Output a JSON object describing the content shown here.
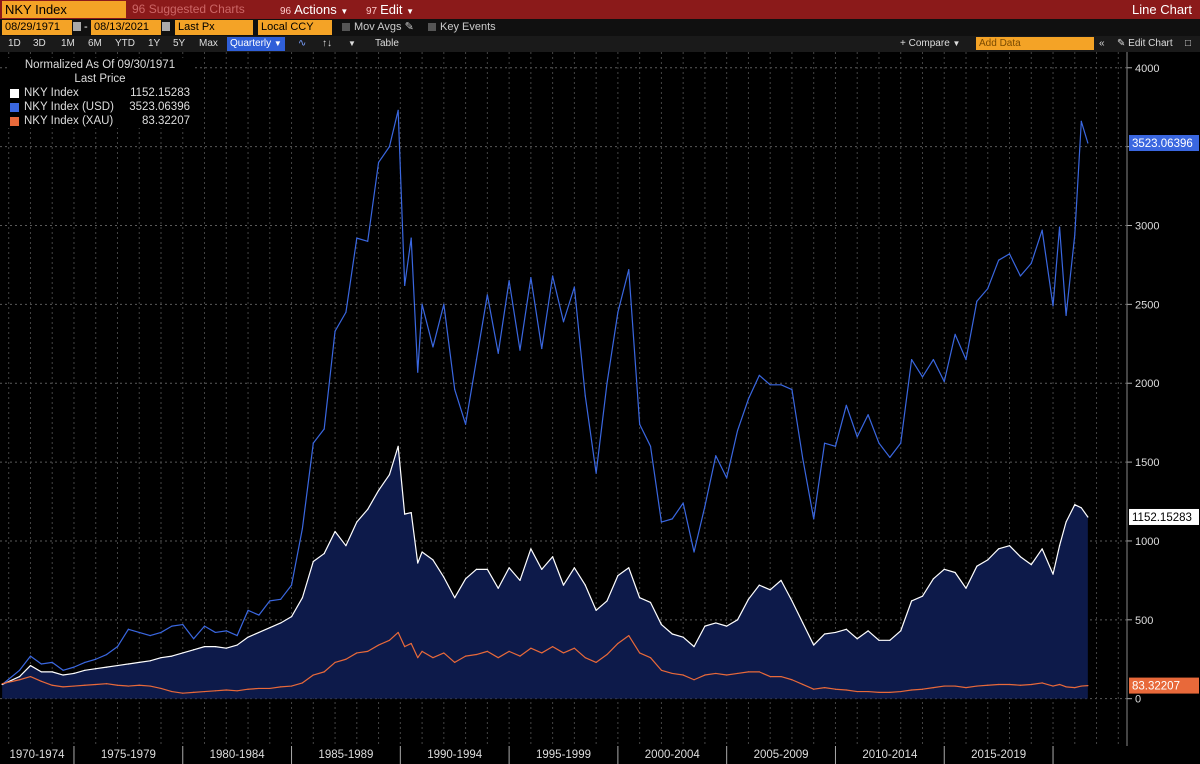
{
  "toolbar": {
    "ticker": "NKY Index",
    "suggested_label": "Suggested Charts",
    "suggested_num": "96",
    "actions_num": "96",
    "actions_label": "Actions",
    "edit_num": "97",
    "edit_label": "Edit",
    "chart_type": "Line Chart",
    "start_date": "08/29/1971",
    "end_date": "08/13/2021",
    "price_field": "Last Px",
    "currency": "Local CCY",
    "mov_avgs": "Mov Avgs",
    "key_events": "Key Events",
    "periods": [
      "1D",
      "3D",
      "1M",
      "6M",
      "YTD",
      "1Y",
      "5Y",
      "Max"
    ],
    "frequency": "Quarterly",
    "table_label": "Table",
    "compare_label": "Compare",
    "add_data_placeholder": "Add Data",
    "edit_chart_label": "Edit Chart"
  },
  "legend": {
    "normalized": "Normalized As Of 09/30/1971",
    "last_price": "Last Price",
    "items": [
      {
        "name": "NKY Index",
        "value": "1152.15283",
        "color": "#ffffff"
      },
      {
        "name": "NKY Index (USD)",
        "value": "3523.06396",
        "color": "#3a67e0"
      },
      {
        "name": "NKY Index (XAU)",
        "value": "83.32207",
        "color": "#e8693a"
      }
    ]
  },
  "chart_data": {
    "type": "line",
    "ylim": [
      -300,
      4100
    ],
    "yticks": [
      0,
      500,
      1000,
      1500,
      2000,
      2500,
      3000,
      3500,
      4000
    ],
    "xlim": [
      1971.6,
      2023.4
    ],
    "x_groups": [
      {
        "label": "1970-1974",
        "start": 1971.6,
        "end": 1975
      },
      {
        "label": "1975-1979",
        "start": 1975,
        "end": 1980
      },
      {
        "label": "1980-1984",
        "start": 1980,
        "end": 1985
      },
      {
        "label": "1985-1989",
        "start": 1985,
        "end": 1990
      },
      {
        "label": "1990-1994",
        "start": 1990,
        "end": 1995
      },
      {
        "label": "1995-1999",
        "start": 1995,
        "end": 2000
      },
      {
        "label": "2000-2004",
        "start": 2000,
        "end": 2005
      },
      {
        "label": "2005-2009",
        "start": 2005,
        "end": 2010
      },
      {
        "label": "2010-2014",
        "start": 2010,
        "end": 2015
      },
      {
        "label": "2015-2019",
        "start": 2015,
        "end": 2020
      },
      {
        "label": "",
        "start": 2020,
        "end": 2023.4
      }
    ],
    "series": [
      {
        "name": "NKY Index (USD)",
        "color": "#3a67e0",
        "last_label": "3523.06396",
        "x": [
          1971.7,
          1972.5,
          1973.0,
          1973.5,
          1974.0,
          1974.5,
          1975.0,
          1975.5,
          1976.0,
          1976.5,
          1977.0,
          1977.5,
          1978.0,
          1978.5,
          1979.0,
          1979.5,
          1980.0,
          1980.5,
          1981.0,
          1981.5,
          1982.0,
          1982.5,
          1983.0,
          1983.5,
          1984.0,
          1984.5,
          1985.0,
          1985.5,
          1986.0,
          1986.5,
          1987.0,
          1987.5,
          1988.0,
          1988.5,
          1989.0,
          1989.5,
          1989.9,
          1990.2,
          1990.5,
          1990.8,
          1991.0,
          1991.5,
          1992.0,
          1992.5,
          1993.0,
          1993.5,
          1994.0,
          1994.5,
          1995.0,
          1995.5,
          1996.0,
          1996.5,
          1997.0,
          1997.5,
          1998.0,
          1998.5,
          1999.0,
          1999.5,
          2000.0,
          2000.5,
          2001.0,
          2001.5,
          2002.0,
          2002.5,
          2003.0,
          2003.5,
          2004.0,
          2004.5,
          2005.0,
          2005.5,
          2006.0,
          2006.5,
          2007.0,
          2007.5,
          2008.0,
          2008.5,
          2009.0,
          2009.5,
          2010.0,
          2010.5,
          2011.0,
          2011.5,
          2012.0,
          2012.5,
          2013.0,
          2013.5,
          2014.0,
          2014.5,
          2015.0,
          2015.5,
          2016.0,
          2016.5,
          2017.0,
          2017.5,
          2018.0,
          2018.5,
          2019.0,
          2019.5,
          2020.0,
          2020.3,
          2020.6,
          2021.0,
          2021.3,
          2021.6
        ],
        "values": [
          90,
          180,
          270,
          220,
          230,
          180,
          200,
          230,
          250,
          280,
          330,
          440,
          420,
          400,
          420,
          460,
          470,
          380,
          460,
          420,
          430,
          400,
          560,
          530,
          620,
          630,
          720,
          1080,
          1620,
          1710,
          2330,
          2450,
          2920,
          2900,
          3400,
          3500,
          3730,
          2620,
          2920,
          2070,
          2500,
          2230,
          2500,
          1960,
          1740,
          2150,
          2560,
          2190,
          2650,
          2210,
          2670,
          2220,
          2680,
          2390,
          2610,
          1920,
          1430,
          2000,
          2450,
          2720,
          1740,
          1600,
          1120,
          1140,
          1240,
          930,
          1220,
          1540,
          1400,
          1700,
          1900,
          2050,
          1990,
          1990,
          1960,
          1520,
          1140,
          1620,
          1600,
          1860,
          1660,
          1800,
          1620,
          1530,
          1620,
          2150,
          2040,
          2150,
          2010,
          2310,
          2150,
          2520,
          2600,
          2780,
          2820,
          2680,
          2760,
          2970,
          2490,
          2990,
          2430,
          2940,
          3660,
          3523
        ]
      },
      {
        "name": "NKY Index",
        "color": "#ffffff",
        "last_label": "1152.15283",
        "x": [
          1971.7,
          1972.5,
          1973.0,
          1973.5,
          1974.0,
          1974.5,
          1975.0,
          1975.5,
          1976.0,
          1976.5,
          1977.0,
          1977.5,
          1978.0,
          1978.5,
          1979.0,
          1979.5,
          1980.0,
          1980.5,
          1981.0,
          1981.5,
          1982.0,
          1982.5,
          1983.0,
          1983.5,
          1984.0,
          1984.5,
          1985.0,
          1985.5,
          1986.0,
          1986.5,
          1987.0,
          1987.5,
          1988.0,
          1988.5,
          1989.0,
          1989.5,
          1989.9,
          1990.2,
          1990.5,
          1990.8,
          1991.0,
          1991.5,
          1992.0,
          1992.5,
          1993.0,
          1993.5,
          1994.0,
          1994.5,
          1995.0,
          1995.5,
          1996.0,
          1996.5,
          1997.0,
          1997.5,
          1998.0,
          1998.5,
          1999.0,
          1999.5,
          2000.0,
          2000.5,
          2001.0,
          2001.5,
          2002.0,
          2002.5,
          2003.0,
          2003.5,
          2004.0,
          2004.5,
          2005.0,
          2005.5,
          2006.0,
          2006.5,
          2007.0,
          2007.5,
          2008.0,
          2008.5,
          2009.0,
          2009.5,
          2010.0,
          2010.5,
          2011.0,
          2011.5,
          2012.0,
          2012.5,
          2013.0,
          2013.5,
          2014.0,
          2014.5,
          2015.0,
          2015.5,
          2016.0,
          2016.5,
          2017.0,
          2017.5,
          2018.0,
          2018.5,
          2019.0,
          2019.5,
          2020.0,
          2020.3,
          2020.6,
          2021.0,
          2021.3,
          2021.6
        ],
        "values": [
          90,
          140,
          210,
          170,
          170,
          150,
          160,
          180,
          190,
          200,
          210,
          220,
          230,
          240,
          260,
          270,
          290,
          310,
          330,
          330,
          320,
          340,
          390,
          420,
          450,
          480,
          520,
          640,
          870,
          920,
          1060,
          970,
          1120,
          1200,
          1320,
          1420,
          1600,
          1170,
          1180,
          860,
          930,
          880,
          770,
          640,
          760,
          820,
          820,
          700,
          830,
          750,
          950,
          820,
          900,
          720,
          830,
          720,
          560,
          620,
          780,
          830,
          640,
          610,
          470,
          410,
          390,
          330,
          460,
          480,
          460,
          500,
          630,
          720,
          690,
          750,
          620,
          480,
          340,
          410,
          420,
          440,
          380,
          430,
          370,
          370,
          430,
          620,
          650,
          760,
          820,
          800,
          700,
          840,
          880,
          950,
          970,
          900,
          850,
          950,
          790,
          970,
          1120,
          1230,
          1210,
          1152
        ]
      },
      {
        "name": "NKY Index (XAU)",
        "color": "#e8693a",
        "last_label": "83.32207",
        "x": [
          1971.7,
          1972.5,
          1973.0,
          1973.5,
          1974.0,
          1974.5,
          1975.0,
          1975.5,
          1976.0,
          1976.5,
          1977.0,
          1977.5,
          1978.0,
          1978.5,
          1979.0,
          1979.5,
          1980.0,
          1980.5,
          1981.0,
          1981.5,
          1982.0,
          1982.5,
          1983.0,
          1983.5,
          1984.0,
          1984.5,
          1985.0,
          1985.5,
          1986.0,
          1986.5,
          1987.0,
          1987.5,
          1988.0,
          1988.5,
          1989.0,
          1989.5,
          1989.9,
          1990.2,
          1990.5,
          1990.8,
          1991.0,
          1991.5,
          1992.0,
          1992.5,
          1993.0,
          1993.5,
          1994.0,
          1994.5,
          1995.0,
          1995.5,
          1996.0,
          1996.5,
          1997.0,
          1997.5,
          1998.0,
          1998.5,
          1999.0,
          1999.5,
          2000.0,
          2000.5,
          2001.0,
          2001.5,
          2002.0,
          2002.5,
          2003.0,
          2003.5,
          2004.0,
          2004.5,
          2005.0,
          2005.5,
          2006.0,
          2006.5,
          2007.0,
          2007.5,
          2008.0,
          2008.5,
          2009.0,
          2009.5,
          2010.0,
          2010.5,
          2011.0,
          2011.5,
          2012.0,
          2012.5,
          2013.0,
          2013.5,
          2014.0,
          2014.5,
          2015.0,
          2015.5,
          2016.0,
          2016.5,
          2017.0,
          2017.5,
          2018.0,
          2018.5,
          2019.0,
          2019.5,
          2020.0,
          2020.3,
          2020.6,
          2021.0,
          2021.3,
          2021.6
        ],
        "values": [
          95,
          120,
          140,
          110,
          85,
          75,
          80,
          85,
          90,
          95,
          85,
          80,
          85,
          80,
          65,
          45,
          35,
          40,
          45,
          50,
          55,
          50,
          60,
          65,
          65,
          75,
          80,
          100,
          150,
          170,
          230,
          250,
          290,
          300,
          340,
          370,
          420,
          330,
          350,
          260,
          300,
          260,
          290,
          230,
          270,
          280,
          300,
          260,
          300,
          270,
          320,
          290,
          330,
          290,
          320,
          260,
          230,
          280,
          350,
          400,
          290,
          260,
          180,
          160,
          150,
          120,
          150,
          160,
          150,
          160,
          170,
          170,
          140,
          140,
          120,
          90,
          60,
          70,
          60,
          55,
          45,
          45,
          40,
          40,
          45,
          55,
          60,
          70,
          80,
          80,
          70,
          80,
          85,
          90,
          90,
          85,
          90,
          100,
          80,
          90,
          75,
          70,
          80,
          83
        ]
      }
    ]
  }
}
